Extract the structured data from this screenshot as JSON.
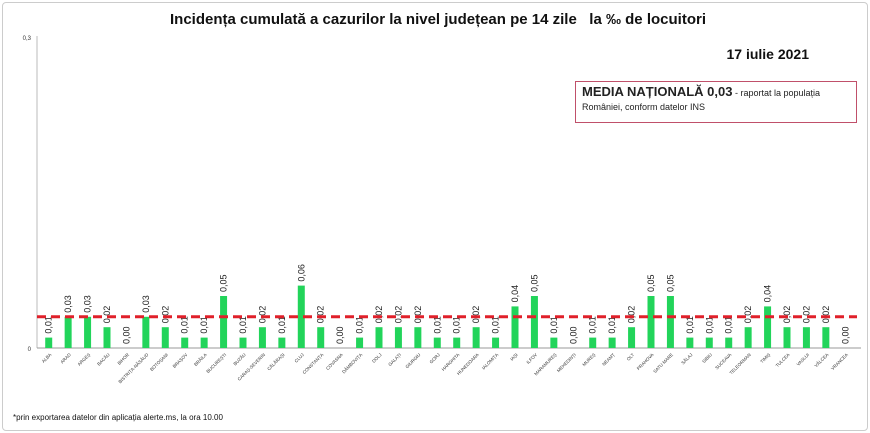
{
  "chart_data": {
    "type": "bar",
    "title": "Incidența cumulată a cazurilor la nivel județean pe 14 zile   la ‰ de locuitori",
    "date": "17 iulie 2021",
    "ylim": [
      0,
      0.3
    ],
    "yticks": [
      "0",
      "0,3"
    ],
    "reference_line": {
      "value": 0.03,
      "color": "#e0202a",
      "style": "dashed"
    },
    "bar_color": "#22d45a",
    "categories": [
      "ALBA",
      "ARAD",
      "ARGEȘ",
      "BACĂU",
      "BIHOR",
      "BISTRIȚA-NĂSĂUD",
      "BOTOȘANI",
      "BRAȘOV",
      "BRĂILA",
      "BUCUREȘTI",
      "BUZĂU",
      "CARAȘ-SEVERIN",
      "CĂLĂRAȘI",
      "CLUJ",
      "CONSTANȚA",
      "COVASNA",
      "DÂMBOVIȚA",
      "DOLJ",
      "GALAȚI",
      "GIURGIU",
      "GORJ",
      "HARGHITA",
      "HUNEDOARA",
      "IALOMIȚA",
      "IAȘI",
      "ILFOV",
      "MARAMUREȘ",
      "MEHEDINȚI",
      "MUREȘ",
      "NEAMȚ",
      "OLT",
      "PRAHOVA",
      "SATU MARE",
      "SĂLAJ",
      "SIBIU",
      "SUCEAVA",
      "TELEORMAN",
      "TIMIȘ",
      "TULCEA",
      "VASLUI",
      "VÂLCEA",
      "VRANCEA"
    ],
    "values": [
      0.01,
      0.03,
      0.03,
      0.02,
      0.0,
      0.03,
      0.02,
      0.01,
      0.01,
      0.05,
      0.01,
      0.02,
      0.01,
      0.06,
      0.02,
      0.0,
      0.01,
      0.02,
      0.02,
      0.02,
      0.01,
      0.01,
      0.02,
      0.01,
      0.04,
      0.05,
      0.01,
      0.0,
      0.01,
      0.01,
      0.02,
      0.05,
      0.05,
      0.01,
      0.01,
      0.01,
      0.02,
      0.04,
      0.02,
      0.02,
      0.02,
      0.0
    ],
    "value_labels": [
      "0,01",
      "0,03",
      "0,03",
      "0,02",
      "0,00",
      "0,03",
      "0,02",
      "0,01",
      "0,01",
      "0,05",
      "0,01",
      "0,02",
      "0,01",
      "0,06",
      "0,02",
      "0,00",
      "0,01",
      "0,02",
      "0,02",
      "0,02",
      "0,01",
      "0,01",
      "0,02",
      "0,01",
      "0,04",
      "0,05",
      "0,01",
      "0,00",
      "0,01",
      "0,01",
      "0,02",
      "0,05",
      "0,05",
      "0,01",
      "0,01",
      "0,01",
      "0,02",
      "0,04",
      "0,02",
      "0,02",
      "0,02",
      "0,00"
    ]
  },
  "media": {
    "bold": "MEDIA NAȚIONALĂ 0,03",
    "text": " - raportat la populația României, conform datelor INS"
  },
  "footnote": "*prin exportarea datelor din aplicația alerte.ms, la ora 10.00"
}
